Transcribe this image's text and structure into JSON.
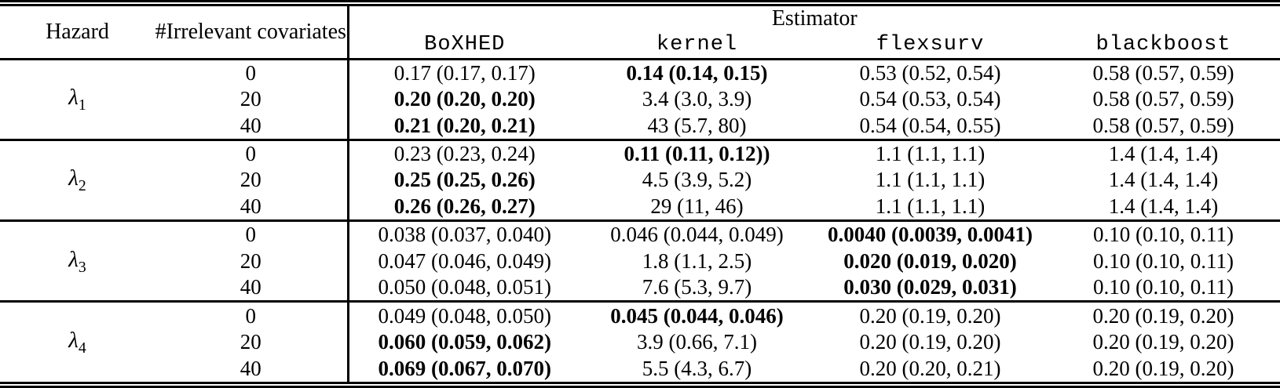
{
  "table": {
    "header": {
      "hazard": "Hazard",
      "covariates": "#Irrelevant covariates",
      "estimator_group": "Estimator",
      "estimators": [
        "BoXHED",
        "kernel",
        "flexsurv",
        "blackboost"
      ]
    },
    "groups": [
      {
        "hazard_base": "λ",
        "hazard_sub": "1",
        "rows": [
          {
            "covariates": "0",
            "values": [
              {
                "text": "0.17 (0.17, 0.17)",
                "bold": false
              },
              {
                "text": "0.14 (0.14, 0.15)",
                "bold": true
              },
              {
                "text": "0.53 (0.52, 0.54)",
                "bold": false
              },
              {
                "text": "0.58 (0.57, 0.59)",
                "bold": false
              }
            ]
          },
          {
            "covariates": "20",
            "values": [
              {
                "text": "0.20 (0.20, 0.20)",
                "bold": true
              },
              {
                "text": "3.4 (3.0, 3.9)",
                "bold": false
              },
              {
                "text": "0.54 (0.53, 0.54)",
                "bold": false
              },
              {
                "text": "0.58 (0.57, 0.59)",
                "bold": false
              }
            ]
          },
          {
            "covariates": "40",
            "values": [
              {
                "text": "0.21 (0.20, 0.21)",
                "bold": true
              },
              {
                "text": "43 (5.7, 80)",
                "bold": false
              },
              {
                "text": "0.54 (0.54, 0.55)",
                "bold": false
              },
              {
                "text": "0.58 (0.57, 0.59)",
                "bold": false
              }
            ]
          }
        ]
      },
      {
        "hazard_base": "λ",
        "hazard_sub": "2",
        "rows": [
          {
            "covariates": "0",
            "values": [
              {
                "text": "0.23 (0.23, 0.24)",
                "bold": false
              },
              {
                "text": "0.11 (0.11, 0.12))",
                "bold": true
              },
              {
                "text": "1.1 (1.1, 1.1)",
                "bold": false
              },
              {
                "text": "1.4 (1.4, 1.4)",
                "bold": false
              }
            ]
          },
          {
            "covariates": "20",
            "values": [
              {
                "text": "0.25 (0.25, 0.26)",
                "bold": true
              },
              {
                "text": "4.5 (3.9, 5.2)",
                "bold": false
              },
              {
                "text": "1.1 (1.1, 1.1)",
                "bold": false
              },
              {
                "text": "1.4 (1.4, 1.4)",
                "bold": false
              }
            ]
          },
          {
            "covariates": "40",
            "values": [
              {
                "text": "0.26 (0.26, 0.27)",
                "bold": true
              },
              {
                "text": "29 (11, 46)",
                "bold": false
              },
              {
                "text": "1.1 (1.1, 1.1)",
                "bold": false
              },
              {
                "text": "1.4 (1.4, 1.4)",
                "bold": false
              }
            ]
          }
        ]
      },
      {
        "hazard_base": "λ",
        "hazard_sub": "3",
        "rows": [
          {
            "covariates": "0",
            "values": [
              {
                "text": "0.038 (0.037, 0.040)",
                "bold": false
              },
              {
                "text": "0.046 (0.044, 0.049)",
                "bold": false
              },
              {
                "text": "0.0040 (0.0039, 0.0041)",
                "bold": true
              },
              {
                "text": "0.10 (0.10, 0.11)",
                "bold": false
              }
            ]
          },
          {
            "covariates": "20",
            "values": [
              {
                "text": "0.047 (0.046, 0.049)",
                "bold": false
              },
              {
                "text": "1.8 (1.1, 2.5)",
                "bold": false
              },
              {
                "text": "0.020 (0.019, 0.020)",
                "bold": true
              },
              {
                "text": "0.10 (0.10, 0.11)",
                "bold": false
              }
            ]
          },
          {
            "covariates": "40",
            "values": [
              {
                "text": "0.050 (0.048, 0.051)",
                "bold": false
              },
              {
                "text": "7.6 (5.3, 9.7)",
                "bold": false
              },
              {
                "text": "0.030 (0.029, 0.031)",
                "bold": true
              },
              {
                "text": "0.10 (0.10, 0.11)",
                "bold": false
              }
            ]
          }
        ]
      },
      {
        "hazard_base": "λ",
        "hazard_sub": "4",
        "rows": [
          {
            "covariates": "0",
            "values": [
              {
                "text": "0.049 (0.048, 0.050)",
                "bold": false
              },
              {
                "text": "0.045 (0.044, 0.046)",
                "bold": true
              },
              {
                "text": "0.20 (0.19, 0.20)",
                "bold": false
              },
              {
                "text": "0.20 (0.19, 0.20)",
                "bold": false
              }
            ]
          },
          {
            "covariates": "20",
            "values": [
              {
                "text": "0.060 (0.059, 0.062)",
                "bold": true
              },
              {
                "text": "3.9 (0.66, 7.1)",
                "bold": false
              },
              {
                "text": "0.20 (0.19, 0.20)",
                "bold": false
              },
              {
                "text": "0.20 (0.19, 0.20)",
                "bold": false
              }
            ]
          },
          {
            "covariates": "40",
            "values": [
              {
                "text": "0.069 (0.067, 0.070)",
                "bold": true
              },
              {
                "text": "5.5 (4.3, 6.7)",
                "bold": false
              },
              {
                "text": "0.20 (0.20, 0.21)",
                "bold": false
              },
              {
                "text": "0.20 (0.19, 0.20)",
                "bold": false
              }
            ]
          }
        ]
      }
    ]
  }
}
